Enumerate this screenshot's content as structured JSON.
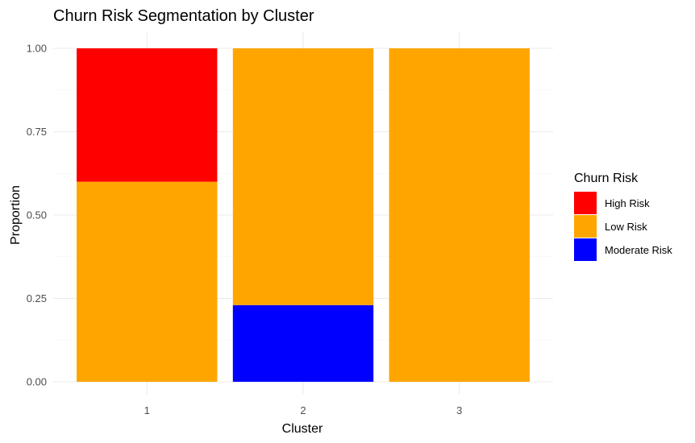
{
  "chart_data": {
    "type": "bar",
    "stacked": true,
    "title": "Churn Risk Segmentation by Cluster",
    "xlabel": "Cluster",
    "ylabel": "Proportion",
    "ylim": [
      0,
      1
    ],
    "grid": true,
    "legend_position": "right",
    "legend_title": "Churn Risk",
    "categories": [
      "1",
      "2",
      "3"
    ],
    "y_ticks": [
      "0.00",
      "0.25",
      "0.50",
      "0.75",
      "1.00"
    ],
    "stack_order": [
      "Moderate Risk",
      "Low Risk",
      "High Risk"
    ],
    "series": [
      {
        "name": "High Risk",
        "color": "#ff0000",
        "values": [
          0.4,
          0.0,
          0.0
        ]
      },
      {
        "name": "Low Risk",
        "color": "#ffa500",
        "values": [
          0.6,
          0.77,
          1.0
        ]
      },
      {
        "name": "Moderate Risk",
        "color": "#0000ff",
        "values": [
          0.0,
          0.23,
          0.0
        ]
      }
    ]
  }
}
